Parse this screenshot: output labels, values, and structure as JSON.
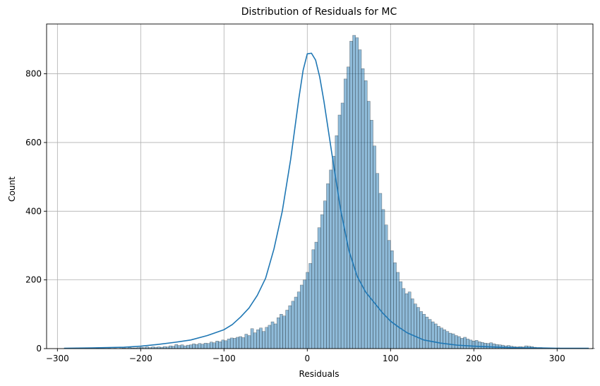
{
  "chart_data": {
    "type": "bar",
    "title": "Distribution of Residuals for MC",
    "xlabel": "Residuals",
    "ylabel": "Count",
    "xlim": [
      -313,
      343
    ],
    "ylim": [
      0,
      945
    ],
    "x_ticks": [
      -300,
      -200,
      -100,
      0,
      100,
      200,
      300
    ],
    "x_tick_labels": [
      "−300",
      "−200",
      "−100",
      "0",
      "100",
      "200",
      "300"
    ],
    "y_ticks": [
      0,
      200,
      400,
      600,
      800
    ],
    "y_tick_labels": [
      "0",
      "200",
      "400",
      "600",
      "800"
    ],
    "grid": true,
    "bar_color": "#1f77b4",
    "bar_fill_alpha": 0.5,
    "kde_color": "#1f77b4",
    "bins": {
      "start": -292,
      "width": 3.5,
      "counts": [
        1,
        0,
        0,
        1,
        0,
        0,
        0,
        1,
        0,
        0,
        0,
        1,
        0,
        0,
        0,
        1,
        0,
        1,
        0,
        1,
        2,
        1,
        3,
        2,
        2,
        3,
        4,
        3,
        5,
        3,
        5,
        4,
        5,
        4,
        6,
        5,
        8,
        7,
        12,
        9,
        11,
        8,
        10,
        11,
        14,
        12,
        15,
        13,
        16,
        15,
        19,
        17,
        22,
        20,
        25,
        23,
        28,
        31,
        30,
        33,
        35,
        32,
        42,
        38,
        58,
        46,
        55,
        60,
        50,
        62,
        68,
        78,
        72,
        90,
        100,
        95,
        112,
        125,
        138,
        150,
        165,
        185,
        200,
        222,
        248,
        288,
        310,
        352,
        390,
        430,
        480,
        520,
        560,
        620,
        680,
        715,
        785,
        820,
        895,
        912,
        905,
        870,
        815,
        780,
        720,
        665,
        590,
        510,
        452,
        405,
        360,
        315,
        285,
        250,
        222,
        195,
        175,
        160,
        165,
        145,
        130,
        120,
        108,
        100,
        92,
        85,
        78,
        72,
        65,
        60,
        55,
        50,
        45,
        43,
        38,
        35,
        30,
        33,
        28,
        25,
        22,
        24,
        20,
        18,
        16,
        15,
        17,
        14,
        12,
        11,
        10,
        8,
        9,
        7,
        6,
        5,
        6,
        5,
        8,
        7,
        6,
        4,
        3,
        3,
        2,
        2,
        1,
        1,
        1,
        2,
        1,
        1,
        1,
        0,
        1,
        0,
        1,
        0,
        0,
        0,
        0,
        1,
        0,
        0,
        0,
        1,
        0,
        0,
        0,
        0,
        0,
        0,
        0,
        0,
        1
      ]
    },
    "kde": {
      "x": [
        -292,
        -260,
        -240,
        -220,
        -200,
        -180,
        -160,
        -140,
        -120,
        -100,
        -90,
        -80,
        -70,
        -60,
        -50,
        -40,
        -30,
        -20,
        -15,
        -10,
        -5,
        0,
        5,
        10,
        15,
        20,
        30,
        40,
        50,
        60,
        70,
        80,
        90,
        100,
        110,
        120,
        140,
        160,
        180,
        200,
        210,
        220,
        240,
        260,
        280,
        300,
        320,
        338
      ],
      "y": [
        1,
        2,
        3,
        4,
        7,
        12,
        18,
        25,
        38,
        55,
        70,
        92,
        118,
        155,
        205,
        290,
        400,
        550,
        640,
        730,
        810,
        858,
        860,
        840,
        790,
        720,
        560,
        405,
        285,
        210,
        165,
        135,
        105,
        80,
        62,
        46,
        25,
        16,
        10,
        7,
        6,
        5,
        3,
        2,
        2,
        1,
        1,
        1
      ]
    }
  }
}
